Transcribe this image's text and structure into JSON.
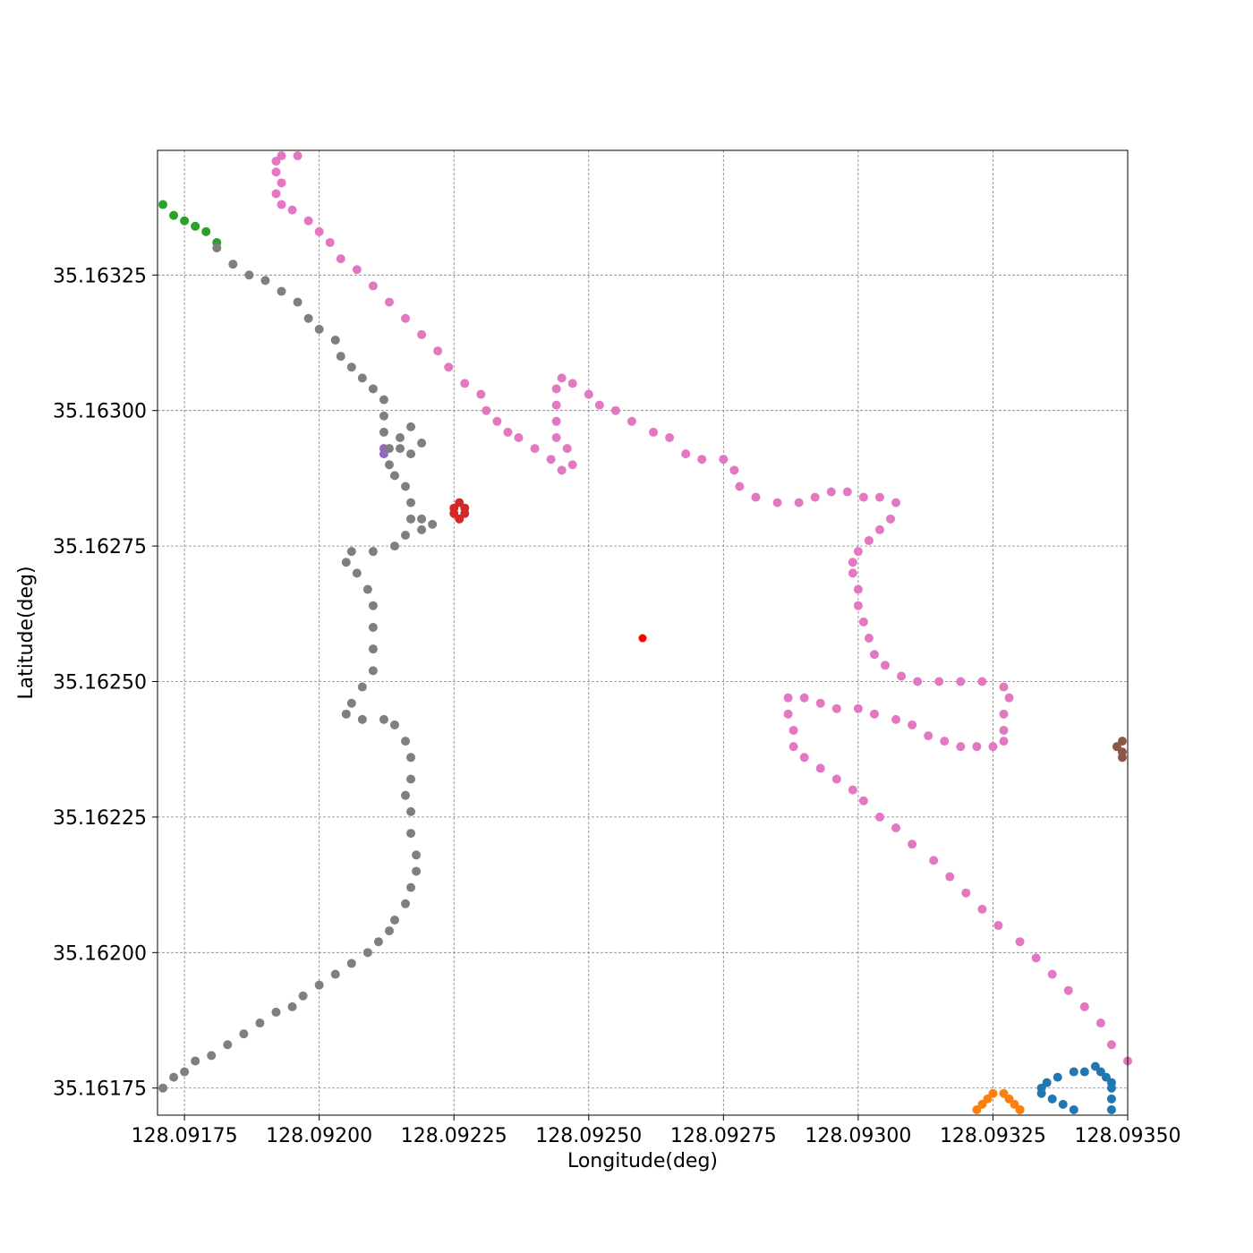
{
  "chart_data": {
    "type": "scatter",
    "title": "",
    "xlabel": "Longitude(deg)",
    "ylabel": "Latitude(deg)",
    "xlim": [
      128.0917,
      128.0935
    ],
    "ylim": [
      35.1617,
      35.16348
    ],
    "grid": true,
    "x_ticks": [
      128.09175,
      128.092,
      128.09225,
      128.0925,
      128.09275,
      128.093,
      128.09325,
      128.0935
    ],
    "x_tick_labels": [
      "128.09175",
      "128.09200",
      "128.09225",
      "128.09250",
      "128.09275",
      "128.09300",
      "128.09325",
      "128.09350"
    ],
    "y_ticks": [
      35.16175,
      35.162,
      35.16225,
      35.1625,
      35.16275,
      35.163,
      35.16325
    ],
    "y_tick_labels": [
      "35.16175",
      "35.16200",
      "35.16225",
      "35.16250",
      "35.16275",
      "35.16300",
      "35.16325"
    ],
    "series": [
      {
        "color": "#1f77b4",
        "points": [
          [
            128.0934,
            35.16171
          ],
          [
            128.09338,
            35.16172
          ],
          [
            128.09336,
            35.16173
          ],
          [
            128.09334,
            35.16174
          ],
          [
            128.09334,
            35.16175
          ],
          [
            128.09335,
            35.16176
          ],
          [
            128.09337,
            35.16177
          ],
          [
            128.0934,
            35.16178
          ],
          [
            128.09342,
            35.16178
          ],
          [
            128.09344,
            35.16179
          ],
          [
            128.09345,
            35.16178
          ],
          [
            128.09346,
            35.16177
          ],
          [
            128.09347,
            35.16176
          ],
          [
            128.09347,
            35.16175
          ],
          [
            128.09347,
            35.16173
          ],
          [
            128.09347,
            35.16171
          ]
        ]
      },
      {
        "color": "#ff7f0e",
        "points": [
          [
            128.09322,
            35.16171
          ],
          [
            128.09323,
            35.16172
          ],
          [
            128.09324,
            35.16173
          ],
          [
            128.09325,
            35.16174
          ],
          [
            128.09327,
            35.16174
          ],
          [
            128.09328,
            35.16173
          ],
          [
            128.09329,
            35.16172
          ],
          [
            128.0933,
            35.16171
          ],
          [
            128.0933,
            35.16171
          ]
        ]
      },
      {
        "color": "#2ca02c",
        "points": [
          [
            128.09171,
            35.16338
          ],
          [
            128.09173,
            35.16336
          ],
          [
            128.09175,
            35.16335
          ],
          [
            128.09177,
            35.16334
          ],
          [
            128.09179,
            35.16333
          ],
          [
            128.09181,
            35.16331
          ]
        ]
      },
      {
        "color": "#d62728",
        "points": [
          [
            128.09226,
            35.16283
          ],
          [
            128.09225,
            35.16282
          ],
          [
            128.09227,
            35.16282
          ],
          [
            128.09225,
            35.16281
          ],
          [
            128.09227,
            35.16281
          ],
          [
            128.09226,
            35.1628
          ]
        ]
      },
      {
        "color": "#9467bd",
        "points": [
          [
            128.09212,
            35.16293
          ],
          [
            128.09212,
            35.16292
          ]
        ]
      },
      {
        "color": "#8c564b",
        "points": [
          [
            128.09349,
            35.16239
          ],
          [
            128.09348,
            35.16238
          ],
          [
            128.09349,
            35.16237
          ],
          [
            128.09349,
            35.16236
          ]
        ]
      },
      {
        "color": "#e377c2",
        "points": [
          [
            128.09196,
            35.16347
          ],
          [
            128.09193,
            35.16347
          ],
          [
            128.09192,
            35.16346
          ],
          [
            128.09192,
            35.16344
          ],
          [
            128.09193,
            35.16342
          ],
          [
            128.09192,
            35.1634
          ],
          [
            128.09193,
            35.16338
          ],
          [
            128.09195,
            35.16337
          ],
          [
            128.09198,
            35.16335
          ],
          [
            128.092,
            35.16333
          ],
          [
            128.09202,
            35.16331
          ],
          [
            128.09204,
            35.16328
          ],
          [
            128.09207,
            35.16326
          ],
          [
            128.0921,
            35.16323
          ],
          [
            128.09213,
            35.1632
          ],
          [
            128.09216,
            35.16317
          ],
          [
            128.09219,
            35.16314
          ],
          [
            128.09222,
            35.16311
          ],
          [
            128.09224,
            35.16308
          ],
          [
            128.09227,
            35.16305
          ],
          [
            128.0923,
            35.16303
          ],
          [
            128.09231,
            35.163
          ],
          [
            128.09233,
            35.16298
          ],
          [
            128.09235,
            35.16296
          ],
          [
            128.09237,
            35.16295
          ],
          [
            128.0924,
            35.16293
          ],
          [
            128.09243,
            35.16291
          ],
          [
            128.09245,
            35.16289
          ],
          [
            128.09247,
            35.1629
          ],
          [
            128.09246,
            35.16293
          ],
          [
            128.09244,
            35.16295
          ],
          [
            128.09244,
            35.16298
          ],
          [
            128.09244,
            35.16301
          ],
          [
            128.09244,
            35.16304
          ],
          [
            128.09245,
            35.16306
          ],
          [
            128.09247,
            35.16305
          ],
          [
            128.0925,
            35.16303
          ],
          [
            128.09252,
            35.16301
          ],
          [
            128.09255,
            35.163
          ],
          [
            128.09258,
            35.16298
          ],
          [
            128.09262,
            35.16296
          ],
          [
            128.09265,
            35.16295
          ],
          [
            128.09268,
            35.16292
          ],
          [
            128.09271,
            35.16291
          ],
          [
            128.09275,
            35.16291
          ],
          [
            128.09277,
            35.16289
          ],
          [
            128.09278,
            35.16286
          ],
          [
            128.09281,
            35.16284
          ],
          [
            128.09285,
            35.16283
          ],
          [
            128.09289,
            35.16283
          ],
          [
            128.09292,
            35.16284
          ],
          [
            128.09295,
            35.16285
          ],
          [
            128.09298,
            35.16285
          ],
          [
            128.09301,
            35.16284
          ],
          [
            128.09304,
            35.16284
          ],
          [
            128.09307,
            35.16283
          ],
          [
            128.09306,
            35.1628
          ],
          [
            128.09304,
            35.16278
          ],
          [
            128.09302,
            35.16276
          ],
          [
            128.093,
            35.16274
          ],
          [
            128.09299,
            35.16272
          ],
          [
            128.09299,
            35.1627
          ],
          [
            128.093,
            35.16267
          ],
          [
            128.093,
            35.16264
          ],
          [
            128.09301,
            35.16261
          ],
          [
            128.09302,
            35.16258
          ],
          [
            128.09303,
            35.16255
          ],
          [
            128.09305,
            35.16253
          ],
          [
            128.09308,
            35.16251
          ],
          [
            128.09311,
            35.1625
          ],
          [
            128.09315,
            35.1625
          ],
          [
            128.09319,
            35.1625
          ],
          [
            128.09323,
            35.1625
          ],
          [
            128.09327,
            35.16249
          ],
          [
            128.09328,
            35.16247
          ],
          [
            128.09327,
            35.16244
          ],
          [
            128.09327,
            35.16241
          ],
          [
            128.09327,
            35.16239
          ],
          [
            128.09325,
            35.16238
          ],
          [
            128.09322,
            35.16238
          ],
          [
            128.09319,
            35.16238
          ],
          [
            128.09316,
            35.16239
          ],
          [
            128.09313,
            35.1624
          ],
          [
            128.0931,
            35.16242
          ],
          [
            128.09307,
            35.16243
          ],
          [
            128.09303,
            35.16244
          ],
          [
            128.093,
            35.16245
          ],
          [
            128.09296,
            35.16245
          ],
          [
            128.09293,
            35.16246
          ],
          [
            128.0929,
            35.16247
          ],
          [
            128.09287,
            35.16247
          ],
          [
            128.09287,
            35.16244
          ],
          [
            128.09288,
            35.16241
          ],
          [
            128.09288,
            35.16238
          ],
          [
            128.0929,
            35.16236
          ],
          [
            128.09293,
            35.16234
          ],
          [
            128.09296,
            35.16232
          ],
          [
            128.09299,
            35.1623
          ],
          [
            128.09301,
            35.16228
          ],
          [
            128.09304,
            35.16225
          ],
          [
            128.09307,
            35.16223
          ],
          [
            128.0931,
            35.1622
          ],
          [
            128.09314,
            35.16217
          ],
          [
            128.09317,
            35.16214
          ],
          [
            128.0932,
            35.16211
          ],
          [
            128.09323,
            35.16208
          ],
          [
            128.09326,
            35.16205
          ],
          [
            128.0933,
            35.16202
          ],
          [
            128.09333,
            35.16199
          ],
          [
            128.09336,
            35.16196
          ],
          [
            128.09339,
            35.16193
          ],
          [
            128.09342,
            35.1619
          ],
          [
            128.09345,
            35.16187
          ],
          [
            128.09347,
            35.16183
          ],
          [
            128.0935,
            35.1618
          ]
        ]
      },
      {
        "color": "#7f7f7f",
        "points": [
          [
            128.09171,
            35.16175
          ],
          [
            128.09173,
            35.16177
          ],
          [
            128.09175,
            35.16178
          ],
          [
            128.09177,
            35.1618
          ],
          [
            128.0918,
            35.16181
          ],
          [
            128.09183,
            35.16183
          ],
          [
            128.09186,
            35.16185
          ],
          [
            128.09189,
            35.16187
          ],
          [
            128.09192,
            35.16189
          ],
          [
            128.09195,
            35.1619
          ],
          [
            128.09197,
            35.16192
          ],
          [
            128.092,
            35.16194
          ],
          [
            128.09203,
            35.16196
          ],
          [
            128.09206,
            35.16198
          ],
          [
            128.09209,
            35.162
          ],
          [
            128.09211,
            35.16202
          ],
          [
            128.09213,
            35.16204
          ],
          [
            128.09214,
            35.16206
          ],
          [
            128.09216,
            35.16209
          ],
          [
            128.09217,
            35.16212
          ],
          [
            128.09218,
            35.16215
          ],
          [
            128.09218,
            35.16218
          ],
          [
            128.09217,
            35.16222
          ],
          [
            128.09217,
            35.16226
          ],
          [
            128.09216,
            35.16229
          ],
          [
            128.09217,
            35.16232
          ],
          [
            128.09217,
            35.16236
          ],
          [
            128.09216,
            35.16239
          ],
          [
            128.09214,
            35.16242
          ],
          [
            128.09212,
            35.16243
          ],
          [
            128.09208,
            35.16243
          ],
          [
            128.09205,
            35.16244
          ],
          [
            128.09206,
            35.16246
          ],
          [
            128.09208,
            35.16249
          ],
          [
            128.0921,
            35.16252
          ],
          [
            128.0921,
            35.16256
          ],
          [
            128.0921,
            35.1626
          ],
          [
            128.0921,
            35.16264
          ],
          [
            128.09209,
            35.16267
          ],
          [
            128.09207,
            35.1627
          ],
          [
            128.09205,
            35.16272
          ],
          [
            128.09206,
            35.16274
          ],
          [
            128.0921,
            35.16274
          ],
          [
            128.09214,
            35.16275
          ],
          [
            128.09216,
            35.16277
          ],
          [
            128.09217,
            35.1628
          ],
          [
            128.09217,
            35.16283
          ],
          [
            128.09216,
            35.16286
          ],
          [
            128.09214,
            35.16288
          ],
          [
            128.09213,
            35.1629
          ],
          [
            128.09213,
            35.16293
          ],
          [
            128.09212,
            35.16296
          ],
          [
            128.09212,
            35.16299
          ],
          [
            128.09212,
            35.16302
          ],
          [
            128.0921,
            35.16304
          ],
          [
            128.09208,
            35.16306
          ],
          [
            128.09206,
            35.16308
          ],
          [
            128.09204,
            35.1631
          ],
          [
            128.09203,
            35.16313
          ],
          [
            128.092,
            35.16315
          ],
          [
            128.09198,
            35.16317
          ],
          [
            128.09196,
            35.1632
          ],
          [
            128.09193,
            35.16322
          ],
          [
            128.0919,
            35.16324
          ],
          [
            128.09187,
            35.16325
          ],
          [
            128.09184,
            35.16327
          ],
          [
            128.09181,
            35.1633
          ],
          [
            128.09215,
            35.16295
          ],
          [
            128.09217,
            35.16297
          ],
          [
            128.09219,
            35.16294
          ],
          [
            128.09217,
            35.16292
          ],
          [
            128.09215,
            35.16293
          ],
          [
            128.09219,
            35.1628
          ],
          [
            128.09221,
            35.16279
          ],
          [
            128.09219,
            35.16278
          ]
        ]
      },
      {
        "color": "#ff0000",
        "small": true,
        "points": [
          [
            128.0926,
            35.16258
          ]
        ]
      }
    ]
  }
}
